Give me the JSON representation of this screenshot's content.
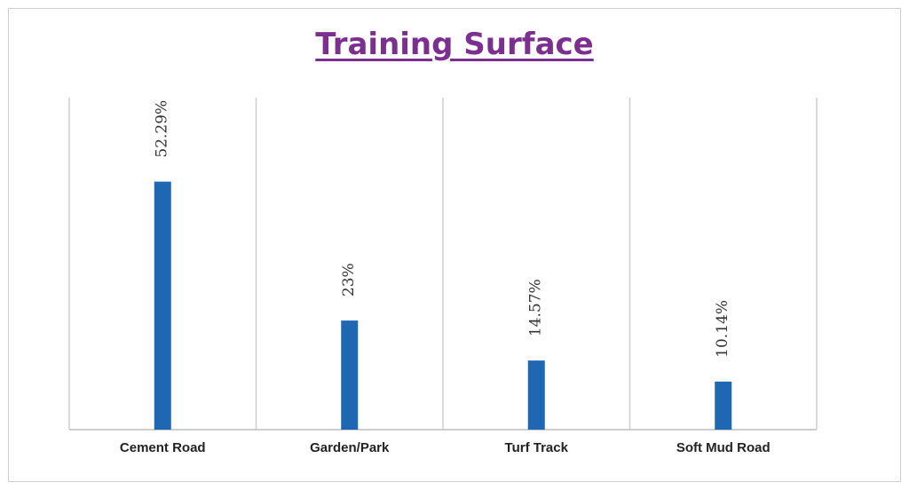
{
  "chart_data": {
    "type": "bar",
    "title": "Training Surface",
    "categories": [
      "Cement Road",
      "Garden/Park",
      "Turf Track",
      "Soft Mud Road"
    ],
    "values": [
      52.29,
      23,
      14.57,
      10.14
    ],
    "value_labels": [
      "52.29%",
      "23%",
      "14.57%",
      "10.14%"
    ],
    "ylim": [
      0,
      70
    ],
    "xlabel": "",
    "ylabel": "",
    "grid": "vertical category separators",
    "legend": "none",
    "bar_color": "#1f66b3",
    "title_color": "#7b2f8e"
  }
}
